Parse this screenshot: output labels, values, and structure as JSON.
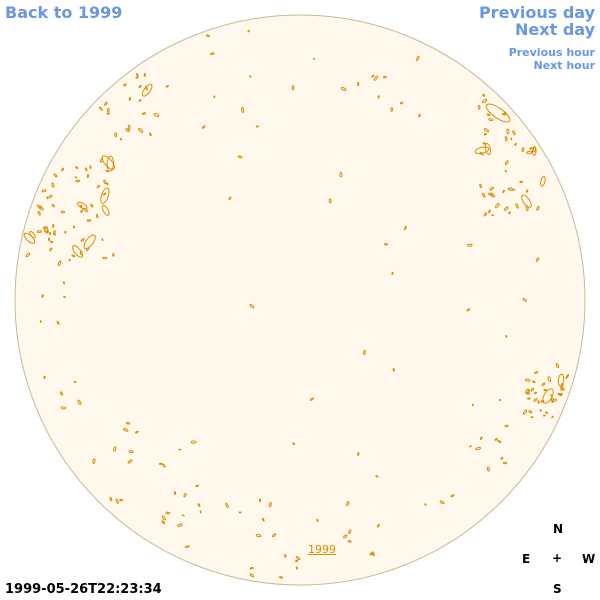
{
  "links": {
    "back": "Back to 1999",
    "previous_day": "Previous day",
    "next_day": "Next day",
    "previous_hour": "Previous hour",
    "next_hour": "Next hour",
    "year": "1999"
  },
  "timestamp": "1999-05-26T22:23:34",
  "compass": {
    "n": "N",
    "e": "E",
    "center": "+",
    "w": "W",
    "s": "S"
  }
}
